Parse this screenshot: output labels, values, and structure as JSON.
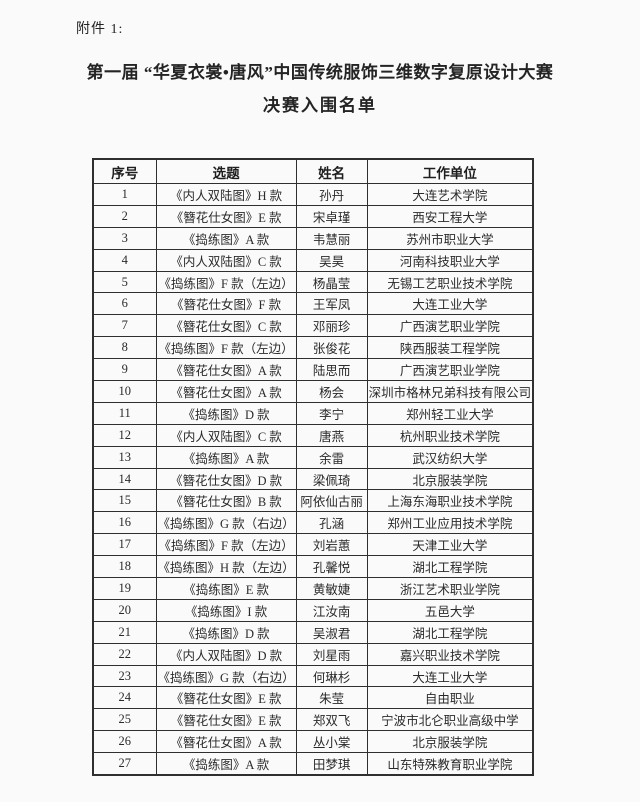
{
  "page": {
    "attachment_label": "附件 1:",
    "title_line1": "第一届 “华夏衣裳•唐风”中国传统服饰三维数字复原设计大赛",
    "title_line2": "决赛入围名单"
  },
  "table": {
    "headers": [
      "序号",
      "选题",
      "姓名",
      "工作单位"
    ],
    "rows": [
      [
        "1",
        "《内人双陆图》H 款",
        "孙丹",
        "大连艺术学院"
      ],
      [
        "2",
        "《簪花仕女图》E 款",
        "宋卓瑾",
        "西安工程大学"
      ],
      [
        "3",
        "《捣练图》A 款",
        "韦慧丽",
        "苏州市职业大学"
      ],
      [
        "4",
        "《内人双陆图》C 款",
        "吴昊",
        "河南科技职业大学"
      ],
      [
        "5",
        "《捣练图》F 款（左边）",
        "杨晶莹",
        "无锡工艺职业技术学院"
      ],
      [
        "6",
        "《簪花仕女图》F 款",
        "王军凤",
        "大连工业大学"
      ],
      [
        "7",
        "《簪花仕女图》C 款",
        "邓丽珍",
        "广西演艺职业学院"
      ],
      [
        "8",
        "《捣练图》F 款（左边）",
        "张俊花",
        "陕西服装工程学院"
      ],
      [
        "9",
        "《簪花仕女图》A 款",
        "陆思而",
        "广西演艺职业学院"
      ],
      [
        "10",
        "《簪花仕女图》A 款",
        "杨会",
        "深圳市格林兄弟科技有限公司"
      ],
      [
        "11",
        "《捣练图》D 款",
        "李宁",
        "郑州轻工业大学"
      ],
      [
        "12",
        "《内人双陆图》C 款",
        "唐燕",
        "杭州职业技术学院"
      ],
      [
        "13",
        "《捣练图》A 款",
        "余雷",
        "武汉纺织大学"
      ],
      [
        "14",
        "《簪花仕女图》D 款",
        "梁佩琦",
        "北京服装学院"
      ],
      [
        "15",
        "《簪花仕女图》B 款",
        "阿依仙古丽",
        "上海东海职业技术学院"
      ],
      [
        "16",
        "《捣练图》G 款（右边）",
        "孔涵",
        "郑州工业应用技术学院"
      ],
      [
        "17",
        "《捣练图》F 款（左边）",
        "刘岩蕙",
        "天津工业大学"
      ],
      [
        "18",
        "《捣练图》H 款（左边）",
        "孔馨悦",
        "湖北工程学院"
      ],
      [
        "19",
        "《捣练图》E 款",
        "黄敏婕",
        "浙江艺术职业学院"
      ],
      [
        "20",
        "《捣练图》I 款",
        "江汝南",
        "五邑大学"
      ],
      [
        "21",
        "《捣练图》D 款",
        "吴淑君",
        "湖北工程学院"
      ],
      [
        "22",
        "《内人双陆图》D 款",
        "刘星雨",
        "嘉兴职业技术学院"
      ],
      [
        "23",
        "《捣练图》G 款（右边）",
        "何琳杉",
        "大连工业大学"
      ],
      [
        "24",
        "《簪花仕女图》E 款",
        "朱莹",
        "自由职业"
      ],
      [
        "25",
        "《簪花仕女图》E 款",
        "郑双飞",
        "宁波市北仑职业高级中学"
      ],
      [
        "26",
        "《簪花仕女图》A 款",
        "丛小棠",
        "北京服装学院"
      ],
      [
        "27",
        "《捣练图》A 款",
        "田梦琪",
        "山东特殊教育职业学院"
      ]
    ]
  }
}
